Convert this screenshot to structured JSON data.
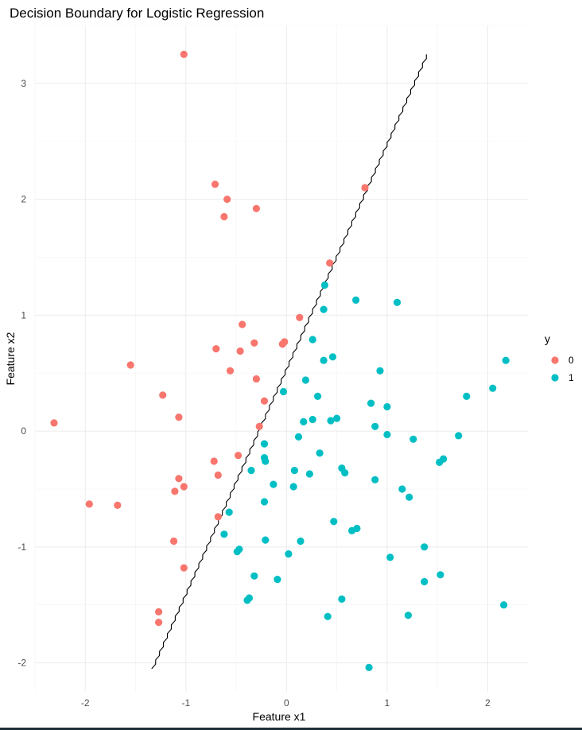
{
  "chart_data": {
    "type": "scatter",
    "title": "Decision Boundary for Logistic Regression",
    "xlabel": "Feature x1",
    "ylabel": "Feature x2",
    "xlim": [
      -2.5,
      2.4
    ],
    "ylim": [
      -2.25,
      3.5
    ],
    "x_ticks": [
      -2,
      -1,
      0,
      1,
      2
    ],
    "y_ticks": [
      -2,
      -1,
      0,
      1,
      2,
      3
    ],
    "grid": true,
    "legend": {
      "title": "y",
      "position": "right"
    },
    "series": [
      {
        "name": "0",
        "color": "#F8766D",
        "points": [
          [
            -1.02,
            3.25
          ],
          [
            -0.71,
            2.13
          ],
          [
            -0.59,
            2.0
          ],
          [
            -0.62,
            1.85
          ],
          [
            -0.3,
            1.92
          ],
          [
            0.78,
            2.1
          ],
          [
            0.43,
            1.45
          ],
          [
            0.13,
            0.98
          ],
          [
            -0.44,
            0.92
          ],
          [
            -0.7,
            0.71
          ],
          [
            -0.46,
            0.69
          ],
          [
            -0.32,
            0.76
          ],
          [
            -0.04,
            0.75
          ],
          [
            -0.02,
            0.77
          ],
          [
            -1.55,
            0.57
          ],
          [
            -0.56,
            0.52
          ],
          [
            -0.3,
            0.45
          ],
          [
            -1.23,
            0.31
          ],
          [
            -0.22,
            0.26
          ],
          [
            -2.31,
            0.07
          ],
          [
            -1.07,
            0.12
          ],
          [
            -0.27,
            0.04
          ],
          [
            -0.48,
            -0.21
          ],
          [
            -0.72,
            -0.26
          ],
          [
            -0.68,
            -0.38
          ],
          [
            -1.07,
            -0.41
          ],
          [
            -1.02,
            -0.48
          ],
          [
            -1.11,
            -0.52
          ],
          [
            -1.96,
            -0.63
          ],
          [
            -1.68,
            -0.64
          ],
          [
            -0.68,
            -0.74
          ],
          [
            -1.12,
            -0.95
          ],
          [
            -1.02,
            -1.18
          ],
          [
            -1.27,
            -1.56
          ],
          [
            -1.27,
            -1.65
          ]
        ]
      },
      {
        "name": "1",
        "color": "#00BFC4",
        "points": [
          [
            0.38,
            1.26
          ],
          [
            0.69,
            1.13
          ],
          [
            1.1,
            1.11
          ],
          [
            0.37,
            1.05
          ],
          [
            0.26,
            0.79
          ],
          [
            0.46,
            0.64
          ],
          [
            0.37,
            0.61
          ],
          [
            2.18,
            0.61
          ],
          [
            0.93,
            0.52
          ],
          [
            0.19,
            0.44
          ],
          [
            -0.03,
            0.34
          ],
          [
            0.31,
            0.3
          ],
          [
            1.79,
            0.3
          ],
          [
            2.05,
            0.37
          ],
          [
            0.84,
            0.24
          ],
          [
            1.0,
            0.21
          ],
          [
            0.5,
            0.11
          ],
          [
            0.44,
            0.09
          ],
          [
            0.26,
            0.1
          ],
          [
            0.17,
            0.08
          ],
          [
            0.88,
            0.04
          ],
          [
            1.0,
            -0.03
          ],
          [
            0.12,
            -0.05
          ],
          [
            1.26,
            -0.07
          ],
          [
            1.71,
            -0.04
          ],
          [
            -0.22,
            -0.11
          ],
          [
            0.33,
            -0.19
          ],
          [
            -0.22,
            -0.23
          ],
          [
            -0.21,
            -0.26
          ],
          [
            1.56,
            -0.24
          ],
          [
            1.52,
            -0.27
          ],
          [
            0.55,
            -0.32
          ],
          [
            0.58,
            -0.36
          ],
          [
            -0.35,
            -0.34
          ],
          [
            0.08,
            -0.34
          ],
          [
            0.23,
            -0.37
          ],
          [
            0.88,
            -0.42
          ],
          [
            -0.13,
            -0.46
          ],
          [
            0.07,
            -0.48
          ],
          [
            1.15,
            -0.5
          ],
          [
            1.22,
            -0.57
          ],
          [
            -0.22,
            -0.61
          ],
          [
            -0.57,
            -0.7
          ],
          [
            0.47,
            -0.78
          ],
          [
            0.65,
            -0.86
          ],
          [
            0.7,
            -0.84
          ],
          [
            -0.62,
            -0.89
          ],
          [
            -0.21,
            -0.94
          ],
          [
            0.14,
            -0.95
          ],
          [
            1.37,
            -1.0
          ],
          [
            -0.47,
            -1.02
          ],
          [
            -0.49,
            -1.04
          ],
          [
            0.02,
            -1.06
          ],
          [
            1.03,
            -1.09
          ],
          [
            -0.32,
            -1.25
          ],
          [
            1.53,
            -1.24
          ],
          [
            -0.09,
            -1.28
          ],
          [
            1.37,
            -1.3
          ],
          [
            -0.37,
            -1.44
          ],
          [
            -0.39,
            -1.46
          ],
          [
            0.55,
            -1.45
          ],
          [
            2.16,
            -1.5
          ],
          [
            0.41,
            -1.6
          ],
          [
            1.21,
            -1.59
          ],
          [
            0.82,
            -2.04
          ]
        ]
      }
    ],
    "decision_boundary": {
      "name": "",
      "color": "#000000",
      "points": [
        [
          -1.33,
          -2.05
        ],
        [
          1.4,
          3.25
        ]
      ]
    }
  }
}
